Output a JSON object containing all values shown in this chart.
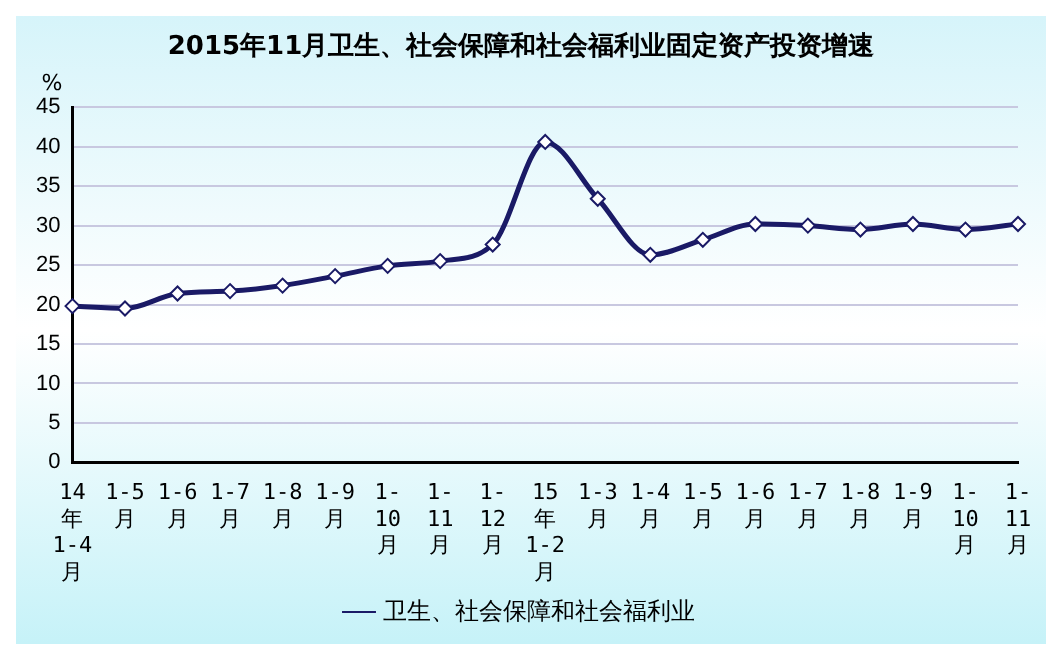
{
  "chart_data": {
    "type": "line",
    "title": "2015年11月卫生、社会保障和社会福利业固定资产投资增速",
    "ylabel": "%",
    "categories": [
      "14\n年\n1-4\n月",
      "1-5\n月",
      "1-6\n月",
      "1-7\n月",
      "1-8\n月",
      "1-9\n月",
      "1-\n10\n月",
      "1-\n11\n月",
      "1-\n12\n月",
      "15\n年\n1-2\n月",
      "1-3\n月",
      "1-4\n月",
      "1-5\n月",
      "1-6\n月",
      "1-7\n月",
      "1-8\n月",
      "1-9\n月",
      "1-\n10\n月",
      "1-\n11\n月"
    ],
    "series": [
      {
        "name": "卫生、社会保障和社会福利业",
        "color": "#1a1a66",
        "values": [
          19.8,
          19.5,
          21.4,
          21.7,
          22.4,
          23.6,
          24.9,
          25.5,
          27.6,
          40.6,
          33.4,
          26.3,
          28.2,
          30.2,
          30.0,
          29.5,
          30.2,
          29.5,
          30.2
        ]
      }
    ],
    "ylim": [
      0,
      45
    ],
    "yticks": [
      0,
      5,
      10,
      15,
      20,
      25,
      30,
      35,
      40,
      45
    ],
    "grid": "y",
    "legend": "bottom",
    "marker": "diamond",
    "line_style": "solid"
  }
}
